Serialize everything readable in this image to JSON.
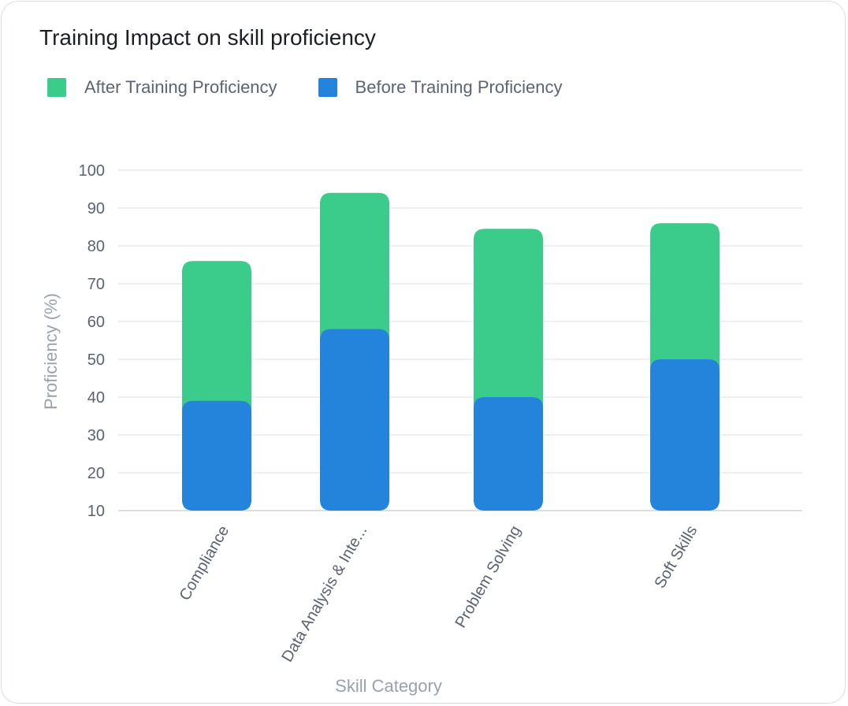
{
  "chart_data": {
    "type": "bar",
    "stacked": false,
    "title": "Training Impact on skill proficiency",
    "xlabel": "Skill Category",
    "ylabel": "Proficiency (%)",
    "categories": [
      "Compliance",
      "Data Analysis & Inte...",
      "Problem Solving",
      "Soft Skills"
    ],
    "series": [
      {
        "name": "After Training Proficiency",
        "color": "#3bcc8b",
        "values": [
          76,
          94,
          84.5,
          86
        ]
      },
      {
        "name": "Before Training Proficiency",
        "color": "#2483da",
        "values": [
          39,
          58,
          40,
          50
        ]
      }
    ],
    "yticks": [
      "100",
      "90",
      "80",
      "70",
      "60",
      "50",
      "40",
      "30",
      "20",
      "10"
    ],
    "ylim": [
      10,
      100
    ],
    "grid": true,
    "legend_position": "top-left"
  }
}
